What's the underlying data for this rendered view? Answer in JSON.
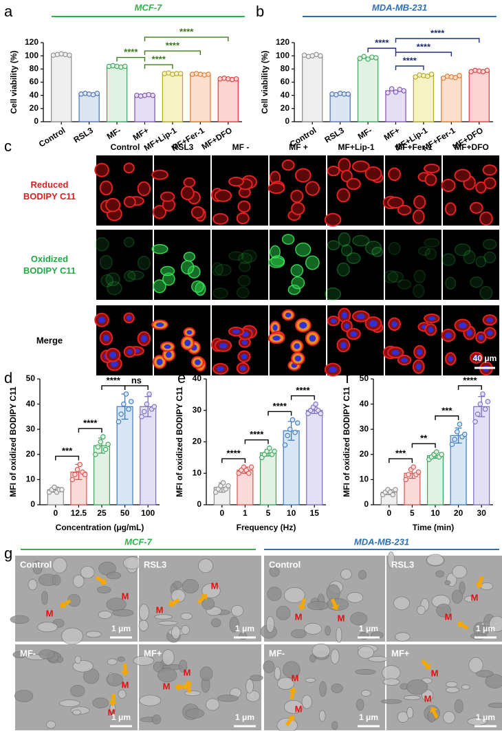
{
  "panel_labels": [
    "a",
    "b",
    "c",
    "d",
    "e",
    "f",
    "g"
  ],
  "chart_data": [
    {
      "type": "bar",
      "title": "MCF-7",
      "title_color": "#2db34a",
      "ylabel": "Cell viability (%)",
      "categories": [
        "Control",
        "RSL3",
        "MF-",
        "MF+",
        "MF+Lip-1",
        "MF+Fer-1",
        "MF+DFO"
      ],
      "values": [
        102,
        42,
        84,
        40,
        73,
        72,
        65
      ],
      "points": [
        [
          101,
          102,
          103,
          102,
          101
        ],
        [
          42,
          43,
          42,
          41,
          43
        ],
        [
          84,
          85,
          84,
          83,
          84
        ],
        [
          40,
          39,
          40,
          41,
          40
        ],
        [
          73,
          74,
          72,
          73,
          73
        ],
        [
          72,
          73,
          72,
          71,
          72
        ],
        [
          65,
          66,
          65,
          64,
          65
        ]
      ],
      "colors": [
        "#8c8c8c",
        "#4a6fb0",
        "#3aa55a",
        "#7d52b0",
        "#b5a824",
        "#e0782a",
        "#e03a3a"
      ],
      "fills": [
        "#efefef",
        "#dce6f3",
        "#e1f2e4",
        "#e6def2",
        "#f5f3c6",
        "#fae0cc",
        "#fbd3d3"
      ],
      "ylim": [
        0,
        120
      ],
      "yticks": [
        0,
        20,
        40,
        60,
        80,
        100,
        120
      ],
      "annotation_color": "#3b7a1c",
      "annotations": [
        {
          "from": "MF-",
          "to": "MF+",
          "label": "****"
        },
        {
          "from": "MF+",
          "to": "MF+Lip-1",
          "label": "****"
        },
        {
          "from": "MF+",
          "to": "MF+Fer-1",
          "label": "****"
        },
        {
          "from": "MF+",
          "to": "MF+DFO",
          "label": "****"
        }
      ]
    },
    {
      "type": "bar",
      "title": "MDA-MB-231",
      "title_color": "#2a6fb8",
      "ylabel": "Cell viability (%)",
      "categories": [
        "Control",
        "RSL3",
        "MF-",
        "MF+",
        "MF+Lip-1",
        "MF+Fer-1",
        "MF+DFO"
      ],
      "values": [
        100,
        42,
        97,
        47,
        70,
        68,
        77
      ],
      "points": [
        [
          101,
          99,
          100,
          102,
          100
        ],
        [
          42,
          41,
          43,
          42,
          42
        ],
        [
          96,
          99,
          95,
          98,
          97
        ],
        [
          44,
          50,
          45,
          49,
          47
        ],
        [
          68,
          71,
          70,
          69,
          72
        ],
        [
          66,
          69,
          68,
          67,
          70
        ],
        [
          76,
          78,
          77,
          76,
          78
        ]
      ],
      "colors": [
        "#8c8c8c",
        "#4a6fb0",
        "#3aa55a",
        "#7d52b0",
        "#b5a824",
        "#e0782a",
        "#e03a3a"
      ],
      "fills": [
        "#efefef",
        "#dce6f3",
        "#e1f2e4",
        "#e6def2",
        "#f5f3c6",
        "#fae0cc",
        "#fbd3d3"
      ],
      "ylim": [
        0,
        120
      ],
      "yticks": [
        0,
        20,
        40,
        60,
        80,
        100,
        120
      ],
      "annotation_color": "#1f2d80",
      "annotations": [
        {
          "from": "MF-",
          "to": "MF+",
          "label": "****"
        },
        {
          "from": "MF+",
          "to": "MF+Lip-1",
          "label": "****"
        },
        {
          "from": "MF+",
          "to": "MF+Fer-1",
          "label": "****"
        },
        {
          "from": "MF+",
          "to": "MF+DFO",
          "label": "****"
        }
      ]
    },
    {
      "type": "bar",
      "ylabel": "MFI of oxidized BODIPY C11",
      "xlabel": "Concentration (μg/mL)",
      "categories": [
        "0",
        "12.5",
        "25",
        "50",
        "100"
      ],
      "values": [
        6,
        13,
        23.5,
        39,
        39
      ],
      "errors": [
        1,
        3,
        3,
        5,
        4
      ],
      "points": [
        [
          5,
          6,
          7,
          5,
          6,
          6
        ],
        [
          10,
          12,
          14,
          16,
          13,
          12
        ],
        [
          20,
          23,
          25,
          27,
          22,
          24
        ],
        [
          33,
          36,
          40,
          44,
          38,
          41
        ],
        [
          35,
          37,
          40,
          44,
          38,
          39
        ]
      ],
      "colors": [
        "#8c8c8c",
        "#d9534f",
        "#3aa55a",
        "#3a7ac0",
        "#7d6bc0"
      ],
      "fills": [
        "#efefef",
        "#fbdada",
        "#e1f2e4",
        "#d8e6f5",
        "#e3dff5"
      ],
      "ylim": [
        0,
        50
      ],
      "yticks": [
        0,
        10,
        20,
        30,
        40,
        50
      ],
      "annotation_color": "#000000",
      "annotations": [
        {
          "from": "0",
          "to": "12.5",
          "label": "***"
        },
        {
          "from": "12.5",
          "to": "25",
          "label": "****"
        },
        {
          "from": "25",
          "to": "50",
          "label": "****"
        },
        {
          "from": "50",
          "to": "100",
          "label": "ns"
        }
      ]
    },
    {
      "type": "bar",
      "ylabel": "MFI of oxidized BODIPY C11",
      "xlabel": "Frequency (Hz)",
      "categories": [
        "0",
        "1",
        "5",
        "10",
        "15"
      ],
      "values": [
        5.5,
        11,
        16.5,
        23.5,
        30
      ],
      "errors": [
        1.5,
        1,
        1,
        3,
        1
      ],
      "points": [
        [
          4,
          5,
          6,
          7,
          5,
          6
        ],
        [
          10,
          11,
          12,
          11,
          10,
          12
        ],
        [
          15,
          16,
          17,
          18,
          16,
          17
        ],
        [
          19,
          22,
          24,
          27,
          23,
          26
        ],
        [
          29,
          30,
          31,
          32,
          30,
          29
        ]
      ],
      "colors": [
        "#8c8c8c",
        "#d9534f",
        "#3aa55a",
        "#3a7ac0",
        "#7d6bc0"
      ],
      "fills": [
        "#efefef",
        "#fbdada",
        "#e1f2e4",
        "#d8e6f5",
        "#e3dff5"
      ],
      "ylim": [
        0,
        40
      ],
      "yticks": [
        0,
        10,
        20,
        30,
        40
      ],
      "annotation_color": "#000000",
      "annotations": [
        {
          "from": "0",
          "to": "1",
          "label": "****"
        },
        {
          "from": "1",
          "to": "5",
          "label": "****"
        },
        {
          "from": "5",
          "to": "10",
          "label": "****"
        },
        {
          "from": "10",
          "to": "15",
          "label": "****"
        }
      ]
    },
    {
      "type": "bar",
      "ylabel": "MFI of oxidized BODIPY C11",
      "xlabel": "Time (min)",
      "categories": [
        "0",
        "5",
        "10",
        "20",
        "30"
      ],
      "values": [
        5,
        12.5,
        19.5,
        27.5,
        39
      ],
      "errors": [
        1,
        2,
        1,
        3,
        4
      ],
      "points": [
        [
          4,
          5,
          6,
          5,
          4,
          6
        ],
        [
          10,
          12,
          14,
          15,
          12,
          13
        ],
        [
          18,
          19,
          20,
          21,
          19,
          20
        ],
        [
          24,
          26,
          29,
          32,
          27,
          28
        ],
        [
          33,
          36,
          40,
          44,
          38,
          41
        ]
      ],
      "colors": [
        "#8c8c8c",
        "#d9534f",
        "#3aa55a",
        "#3a7ac0",
        "#7d6bc0"
      ],
      "fills": [
        "#efefef",
        "#fbdada",
        "#e1f2e4",
        "#d8e6f5",
        "#e3dff5"
      ],
      "ylim": [
        0,
        50
      ],
      "yticks": [
        0,
        10,
        20,
        30,
        40,
        50
      ],
      "annotation_color": "#000000",
      "annotations": [
        {
          "from": "0",
          "to": "5",
          "label": "***"
        },
        {
          "from": "5",
          "to": "10",
          "label": "**"
        },
        {
          "from": "10",
          "to": "20",
          "label": "***"
        },
        {
          "from": "20",
          "to": "30",
          "label": "****"
        }
      ]
    }
  ],
  "panel_c": {
    "columns": [
      "Control",
      "RSL3",
      "MF -",
      "MF +",
      "MF+Lip-1",
      "MF+Fer-1",
      "MF+DFO"
    ],
    "rows": [
      [
        "Reduced",
        "BODIPY C11"
      ],
      [
        "Oxidized",
        "BODIPY C11"
      ],
      [
        "Merge"
      ]
    ],
    "row_colors": [
      "#d42020",
      "#22a845",
      "#000000"
    ],
    "scale_bar": "40 μm"
  },
  "panel_g": {
    "groups": [
      "MCF-7",
      "MDA-MB-231"
    ],
    "group_colors": [
      "#2db34a",
      "#2a6fb8"
    ],
    "images": [
      "Control",
      "RSL3",
      "Control",
      "RSL3",
      "MF-",
      "MF+",
      "MF-",
      "MF+"
    ],
    "marker": "M",
    "scale_bar": "1 μm"
  }
}
